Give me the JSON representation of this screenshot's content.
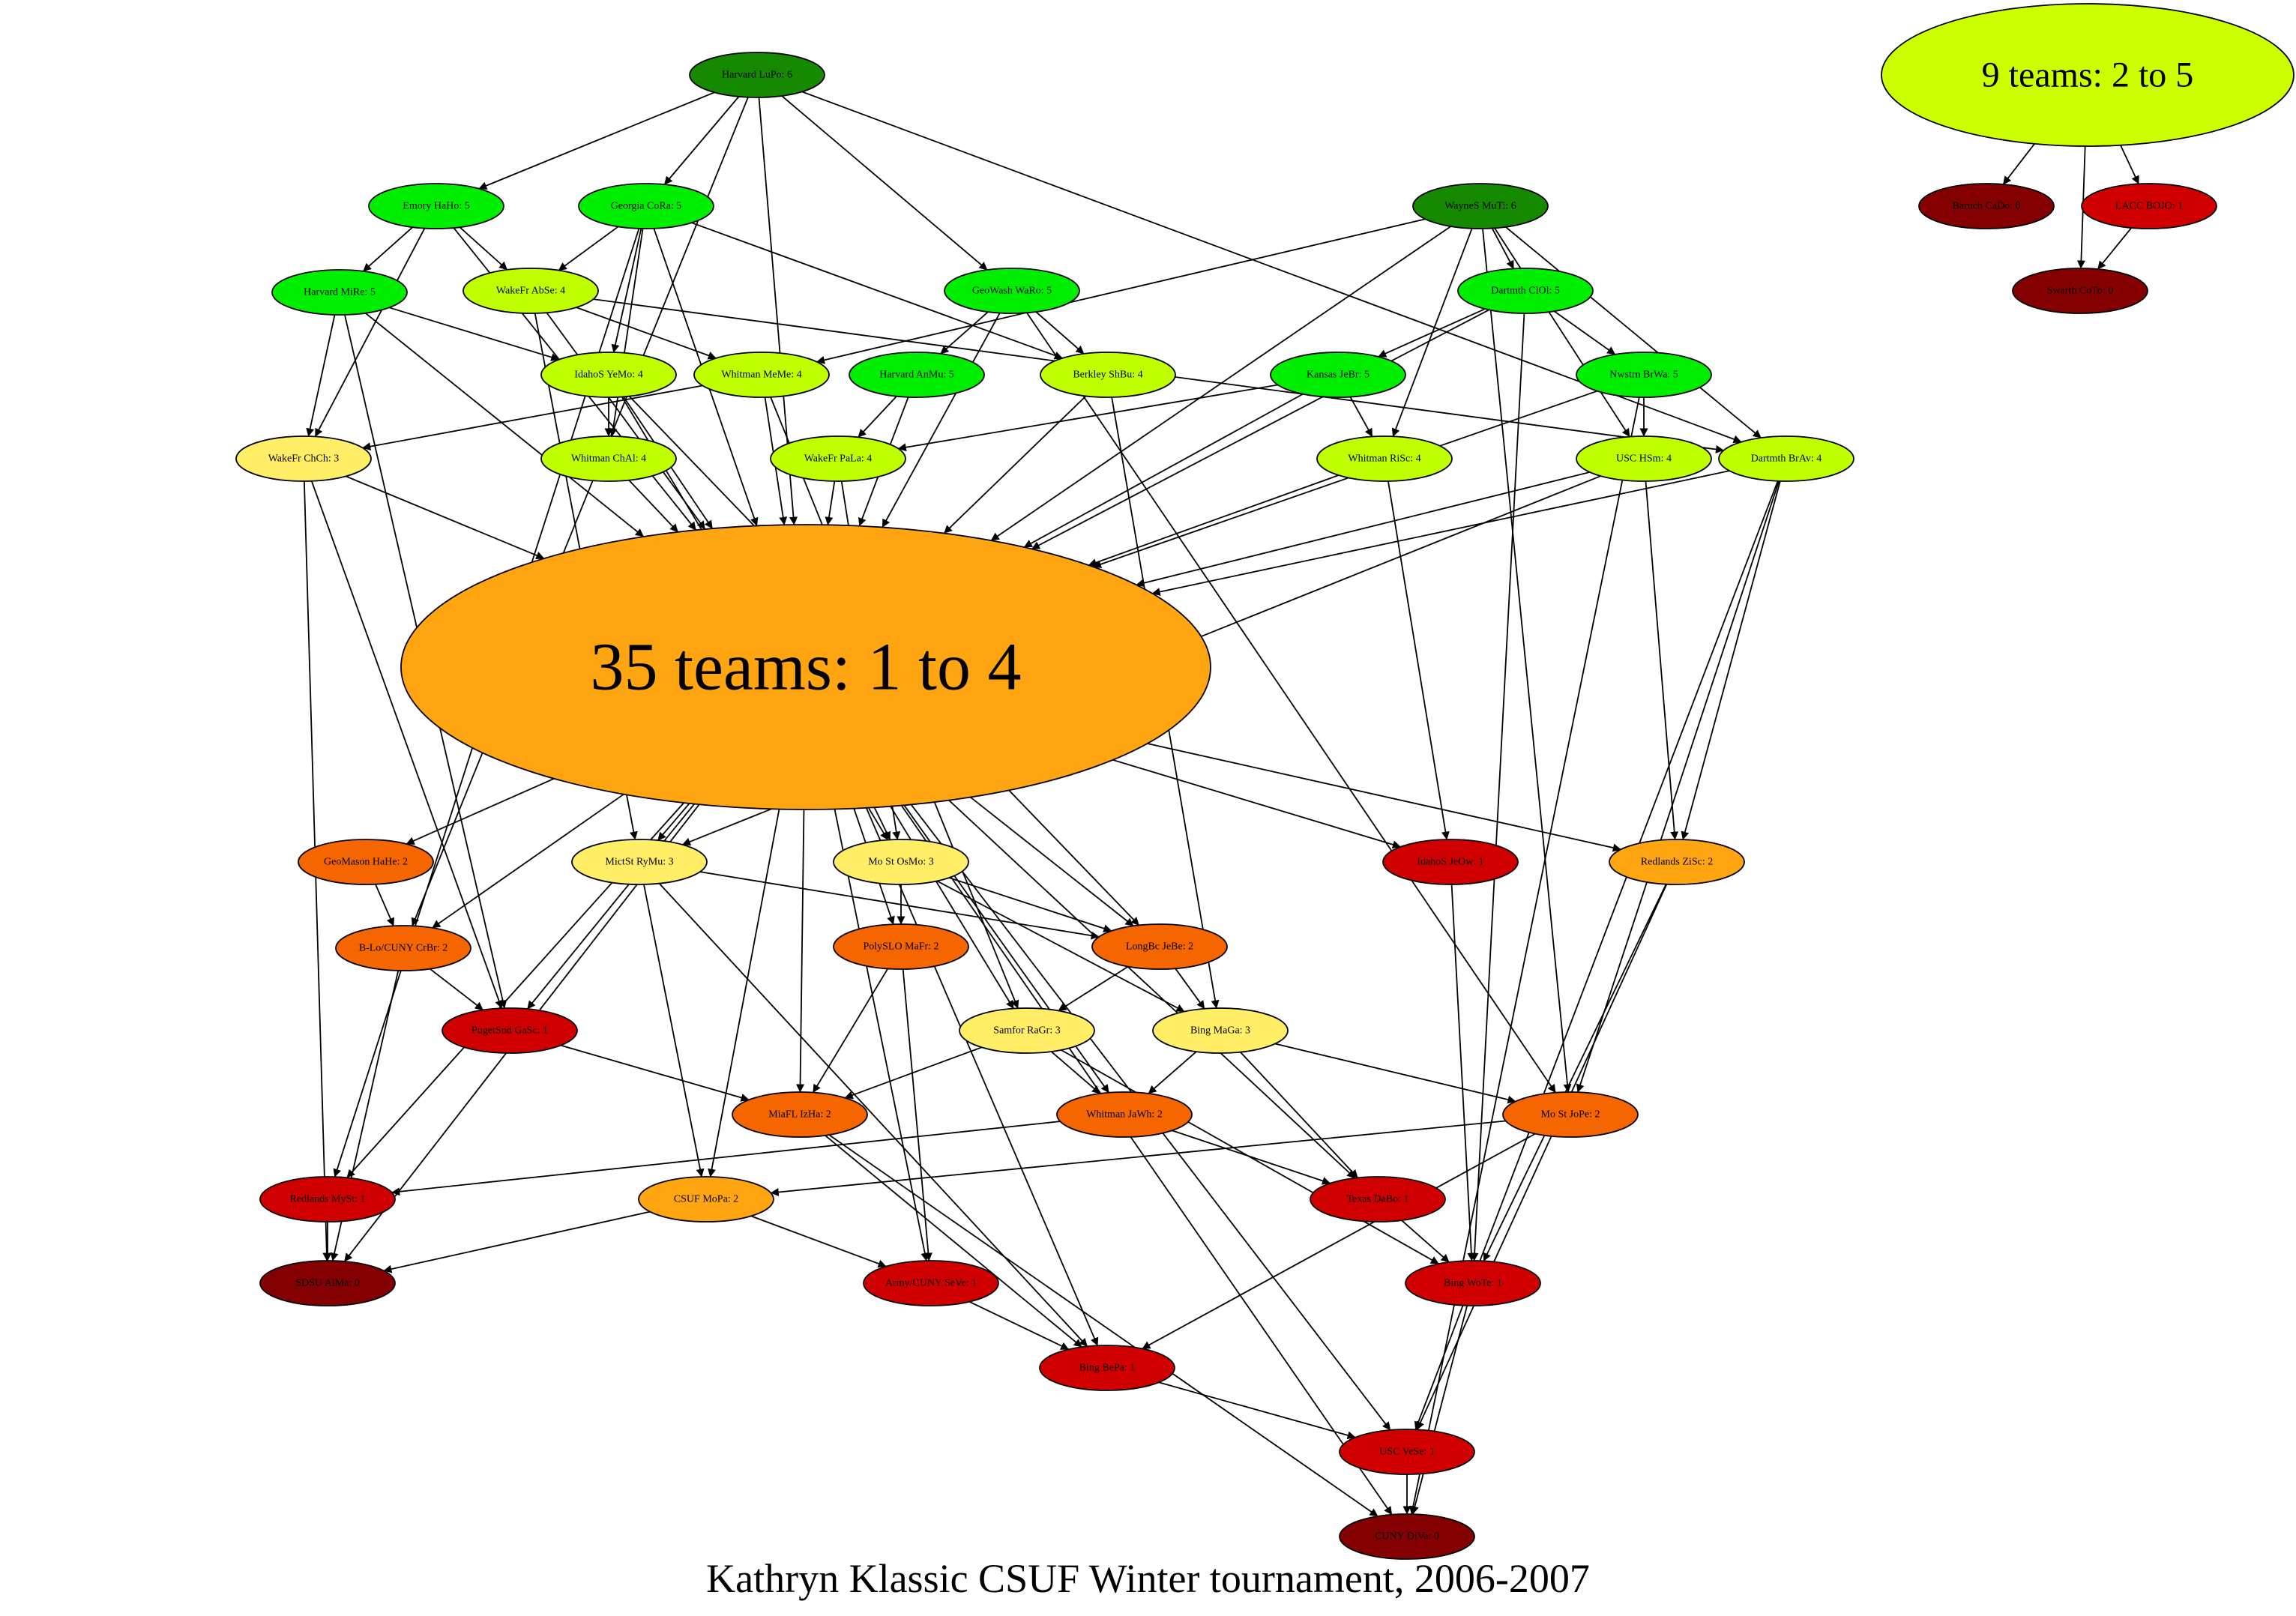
{
  "caption": "Kathryn Klassic CSUF Winter tournament, 2006-2007",
  "colors": {
    "dark_green": "#158a00",
    "green": "#00ee00",
    "yellow_green": "#bfff00",
    "yellow": "#ffee66",
    "amber": "#ffa511",
    "orange": "#f56600",
    "red": "#d10000",
    "dark_red": "#850000",
    "big_green": "#ccff00",
    "edge": "#000000"
  },
  "nodes": [
    {
      "id": "big9",
      "label": "9 teams: 2 to 5",
      "color": "big_green"
    },
    {
      "id": "big35",
      "label": "35 teams: 1 to 4",
      "color": "amber"
    },
    {
      "id": "harvLuPo",
      "label": "Harvard LuPo: 6",
      "color": "dark_green"
    },
    {
      "id": "wayneMuTi",
      "label": "WayneS MuTi: 6",
      "color": "dark_green"
    },
    {
      "id": "emoryHaHo",
      "label": "Emory HaHo: 5",
      "color": "green"
    },
    {
      "id": "georgiaCoRa",
      "label": "Georgia CoRa: 5",
      "color": "green"
    },
    {
      "id": "harvMiRe",
      "label": "Harvard MiRe: 5",
      "color": "green"
    },
    {
      "id": "geoWashWaRo",
      "label": "GeoWash WaRo: 5",
      "color": "green"
    },
    {
      "id": "dartClOl",
      "label": "Dartmth ClOl: 5",
      "color": "green"
    },
    {
      "id": "harvAnMu",
      "label": "Harvard AnMu: 5",
      "color": "green"
    },
    {
      "id": "kansasJeBr",
      "label": "Kansas JeBr: 5",
      "color": "green"
    },
    {
      "id": "nwstrnBrWa",
      "label": "Nwstrn BrWa: 5",
      "color": "green"
    },
    {
      "id": "wakeAbSe",
      "label": "WakeFr AbSe: 4",
      "color": "yellow_green"
    },
    {
      "id": "idahoYeMo",
      "label": "IdahoS YeMo: 4",
      "color": "yellow_green"
    },
    {
      "id": "whitMeMe",
      "label": "Whitman MeMe: 4",
      "color": "yellow_green"
    },
    {
      "id": "berkShBu",
      "label": "Berkley ShBu: 4",
      "color": "yellow_green"
    },
    {
      "id": "whitChAl",
      "label": "Whitman ChAl: 4",
      "color": "yellow_green"
    },
    {
      "id": "wakePaLa",
      "label": "WakeFr PaLa: 4",
      "color": "yellow_green"
    },
    {
      "id": "whitRiSc",
      "label": "Whitman RiSc: 4",
      "color": "yellow_green"
    },
    {
      "id": "uscHSm",
      "label": "USC HSm: 4",
      "color": "yellow_green"
    },
    {
      "id": "dartBrAv",
      "label": "Dartmth BrAv: 4",
      "color": "yellow_green"
    },
    {
      "id": "wakeChCh",
      "label": "WakeFr ChCh: 3",
      "color": "yellow"
    },
    {
      "id": "mictRyMu",
      "label": "MictSt RyMu: 3",
      "color": "yellow"
    },
    {
      "id": "moOsMo",
      "label": "Mo St OsMo: 3",
      "color": "yellow"
    },
    {
      "id": "samforRaGr",
      "label": "Samfor RaGr: 3",
      "color": "yellow"
    },
    {
      "id": "bingMaGa",
      "label": "Bing MaGa: 3",
      "color": "yellow"
    },
    {
      "id": "geoMasonHaHe",
      "label": "GeoMason HaHe: 2",
      "color": "orange"
    },
    {
      "id": "bloCrBr",
      "label": "B-Lo/CUNY  CrBr: 2",
      "color": "orange"
    },
    {
      "id": "polyMaFr",
      "label": "PolySLO MaFr: 2",
      "color": "orange"
    },
    {
      "id": "longBcJeBe",
      "label": "LongBc JeBe: 2",
      "color": "orange"
    },
    {
      "id": "miaflIzHa",
      "label": "MiaFL IzHa: 2",
      "color": "orange"
    },
    {
      "id": "whitJaWh",
      "label": "Whitman JaWh: 2",
      "color": "orange"
    },
    {
      "id": "moJoPe",
      "label": "Mo St JoPe: 2",
      "color": "orange"
    },
    {
      "id": "redlZiSc",
      "label": "Redlands ZiSc: 2",
      "color": "amber"
    },
    {
      "id": "csufMoPa",
      "label": "CSUF MoPa: 2",
      "color": "amber"
    },
    {
      "id": "idahoJeOw",
      "label": "IdahoS JeOw: 1",
      "color": "red"
    },
    {
      "id": "pugetGaSc",
      "label": "PugetSnd GaSc: 1",
      "color": "red"
    },
    {
      "id": "redlMySt",
      "label": "Redlands MySt: 1",
      "color": "red"
    },
    {
      "id": "texasDaBo",
      "label": "Texas DaBo: 1",
      "color": "red"
    },
    {
      "id": "armySeVe",
      "label": "Army/CUNY  SeVe: 1",
      "color": "red"
    },
    {
      "id": "bingWoTe",
      "label": "Bing WoTe: 1",
      "color": "red"
    },
    {
      "id": "bingBePa",
      "label": "Bing BePa: 1",
      "color": "red"
    },
    {
      "id": "uscVeSe",
      "label": "USC VeSe: 1",
      "color": "red"
    },
    {
      "id": "laccBOJO",
      "label": "LACC BOJO: 1",
      "color": "red"
    },
    {
      "id": "sdsuAlMa",
      "label": "SDSU AlMa: 0",
      "color": "dark_red"
    },
    {
      "id": "cunyDiVa",
      "label": "CUNY DiVa: 0",
      "color": "dark_red"
    },
    {
      "id": "baruchCaDo",
      "label": "Baruch CaDo: 0",
      "color": "dark_red"
    },
    {
      "id": "swarthCoTo",
      "label": "Swarth CoTo: 0",
      "color": "dark_red"
    }
  ],
  "edges": [
    [
      "harvLuPo",
      "emoryHaHo"
    ],
    [
      "harvLuPo",
      "georgiaCoRa"
    ],
    [
      "harvLuPo",
      "geoWashWaRo"
    ],
    [
      "harvLuPo",
      "big35"
    ],
    [
      "harvLuPo",
      "dartBrAv"
    ],
    [
      "harvLuPo",
      "bloCrBr"
    ],
    [
      "emoryHaHo",
      "harvMiRe"
    ],
    [
      "emoryHaHo",
      "wakeAbSe"
    ],
    [
      "emoryHaHo",
      "wakeChCh"
    ],
    [
      "emoryHaHo",
      "big35"
    ],
    [
      "georgiaCoRa",
      "wakeAbSe"
    ],
    [
      "georgiaCoRa",
      "idahoYeMo"
    ],
    [
      "georgiaCoRa",
      "berkShBu"
    ],
    [
      "georgiaCoRa",
      "whitChAl"
    ],
    [
      "georgiaCoRa",
      "big35"
    ],
    [
      "georgiaCoRa",
      "redlMySt"
    ],
    [
      "harvMiRe",
      "idahoYeMo"
    ],
    [
      "harvMiRe",
      "wakeChCh"
    ],
    [
      "harvMiRe",
      "big35"
    ],
    [
      "harvMiRe",
      "pugetGaSc"
    ],
    [
      "wakeAbSe",
      "whitMeMe"
    ],
    [
      "wakeAbSe",
      "big35"
    ],
    [
      "wakeAbSe",
      "dartBrAv"
    ],
    [
      "wakeAbSe",
      "mictRyMu"
    ],
    [
      "geoWashWaRo",
      "harvAnMu"
    ],
    [
      "geoWashWaRo",
      "berkShBu"
    ],
    [
      "geoWashWaRo",
      "big35"
    ],
    [
      "geoWashWaRo",
      "moJoPe"
    ],
    [
      "wayneMuTi",
      "whitMeMe"
    ],
    [
      "wayneMuTi",
      "dartClOl"
    ],
    [
      "wayneMuTi",
      "whitRiSc"
    ],
    [
      "wayneMuTi",
      "uscHSm"
    ],
    [
      "wayneMuTi",
      "big35"
    ],
    [
      "wayneMuTi",
      "dartBrAv"
    ],
    [
      "wayneMuTi",
      "moJoPe"
    ],
    [
      "dartClOl",
      "kansasJeBr"
    ],
    [
      "dartClOl",
      "nwstrnBrWa"
    ],
    [
      "dartClOl",
      "big35"
    ],
    [
      "dartClOl",
      "bingWoTe"
    ],
    [
      "kansasJeBr",
      "whitRiSc"
    ],
    [
      "kansasJeBr",
      "wakePaLa"
    ],
    [
      "kansasJeBr",
      "big35"
    ],
    [
      "nwstrnBrWa",
      "uscHSm"
    ],
    [
      "nwstrnBrWa",
      "big35"
    ],
    [
      "nwstrnBrWa",
      "cunyDiVa"
    ],
    [
      "idahoYeMo",
      "whitChAl"
    ],
    [
      "idahoYeMo",
      "big35"
    ],
    [
      "idahoYeMo",
      "longBcJeBe"
    ],
    [
      "idahoYeMo",
      "moOsMo"
    ],
    [
      "whitMeMe",
      "wakeChCh"
    ],
    [
      "whitMeMe",
      "big35"
    ],
    [
      "whitMeMe",
      "samforRaGr"
    ],
    [
      "harvAnMu",
      "wakePaLa"
    ],
    [
      "harvAnMu",
      "big35"
    ],
    [
      "berkShBu",
      "big35"
    ],
    [
      "berkShBu",
      "bingMaGa"
    ],
    [
      "whitChAl",
      "big35"
    ],
    [
      "wakePaLa",
      "big35"
    ],
    [
      "wakePaLa",
      "moOsMo"
    ],
    [
      "whitRiSc",
      "big35"
    ],
    [
      "whitRiSc",
      "idahoJeOw"
    ],
    [
      "uscHSm",
      "big35"
    ],
    [
      "uscHSm",
      "redlZiSc"
    ],
    [
      "uscHSm",
      "mictRyMu"
    ],
    [
      "dartBrAv",
      "big35"
    ],
    [
      "dartBrAv",
      "redlZiSc"
    ],
    [
      "dartBrAv",
      "moJoPe"
    ],
    [
      "dartBrAv",
      "uscVeSe"
    ],
    [
      "wakeChCh",
      "big35"
    ],
    [
      "wakeChCh",
      "sdsuAlMa"
    ],
    [
      "wakeChCh",
      "pugetGaSc"
    ],
    [
      "big35",
      "geoMasonHaHe"
    ],
    [
      "big35",
      "mictRyMu"
    ],
    [
      "big35",
      "moOsMo"
    ],
    [
      "big35",
      "bloCrBr"
    ],
    [
      "big35",
      "pugetGaSc"
    ],
    [
      "big35",
      "polyMaFr"
    ],
    [
      "big35",
      "longBcJeBe"
    ],
    [
      "big35",
      "samforRaGr"
    ],
    [
      "big35",
      "idahoJeOw"
    ],
    [
      "big35",
      "redlZiSc"
    ],
    [
      "big35",
      "miaflIzHa"
    ],
    [
      "big35",
      "csufMoPa"
    ],
    [
      "big35",
      "redlMySt"
    ],
    [
      "big35",
      "sdsuAlMa"
    ],
    [
      "big35",
      "armySeVe"
    ],
    [
      "big35",
      "whitJaWh"
    ],
    [
      "big35",
      "texasDaBo"
    ],
    [
      "big35",
      "bingBePa"
    ],
    [
      "big35",
      "uscVeSe"
    ],
    [
      "big35",
      "cunyDiVa"
    ],
    [
      "geoMasonHaHe",
      "bloCrBr"
    ],
    [
      "bloCrBr",
      "pugetGaSc"
    ],
    [
      "bloCrBr",
      "sdsuAlMa"
    ],
    [
      "mictRyMu",
      "longBcJeBe"
    ],
    [
      "mictRyMu",
      "csufMoPa"
    ],
    [
      "mictRyMu",
      "bingBePa"
    ],
    [
      "moOsMo",
      "polyMaFr"
    ],
    [
      "moOsMo",
      "longBcJeBe"
    ],
    [
      "moOsMo",
      "bingMaGa"
    ],
    [
      "polyMaFr",
      "miaflIzHa"
    ],
    [
      "polyMaFr",
      "armySeVe"
    ],
    [
      "longBcJeBe",
      "samforRaGr"
    ],
    [
      "longBcJeBe",
      "bingMaGa"
    ],
    [
      "samforRaGr",
      "miaflIzHa"
    ],
    [
      "samforRaGr",
      "whitJaWh"
    ],
    [
      "samforRaGr",
      "bingWoTe"
    ],
    [
      "bingMaGa",
      "whitJaWh"
    ],
    [
      "bingMaGa",
      "moJoPe"
    ],
    [
      "bingMaGa",
      "texasDaBo"
    ],
    [
      "pugetGaSc",
      "miaflIzHa"
    ],
    [
      "miaflIzHa",
      "bingBePa"
    ],
    [
      "miaflIzHa",
      "cunyDiVa"
    ],
    [
      "whitJaWh",
      "redlMySt"
    ],
    [
      "whitJaWh",
      "texasDaBo"
    ],
    [
      "moJoPe",
      "csufMoPa"
    ],
    [
      "moJoPe",
      "bingBePa"
    ],
    [
      "redlZiSc",
      "bingWoTe"
    ],
    [
      "redlZiSc",
      "uscVeSe"
    ],
    [
      "idahoJeOw",
      "bingWoTe"
    ],
    [
      "redlMySt",
      "sdsuAlMa"
    ],
    [
      "csufMoPa",
      "sdsuAlMa"
    ],
    [
      "csufMoPa",
      "armySeVe"
    ],
    [
      "texasDaBo",
      "bingWoTe"
    ],
    [
      "armySeVe",
      "bingBePa"
    ],
    [
      "bingWoTe",
      "cunyDiVa"
    ],
    [
      "bingBePa",
      "uscVeSe"
    ],
    [
      "uscVeSe",
      "cunyDiVa"
    ],
    [
      "big9",
      "baruchCaDo"
    ],
    [
      "big9",
      "laccBOJO"
    ],
    [
      "big9",
      "swarthCoTo"
    ],
    [
      "laccBOJO",
      "swarthCoTo"
    ]
  ]
}
